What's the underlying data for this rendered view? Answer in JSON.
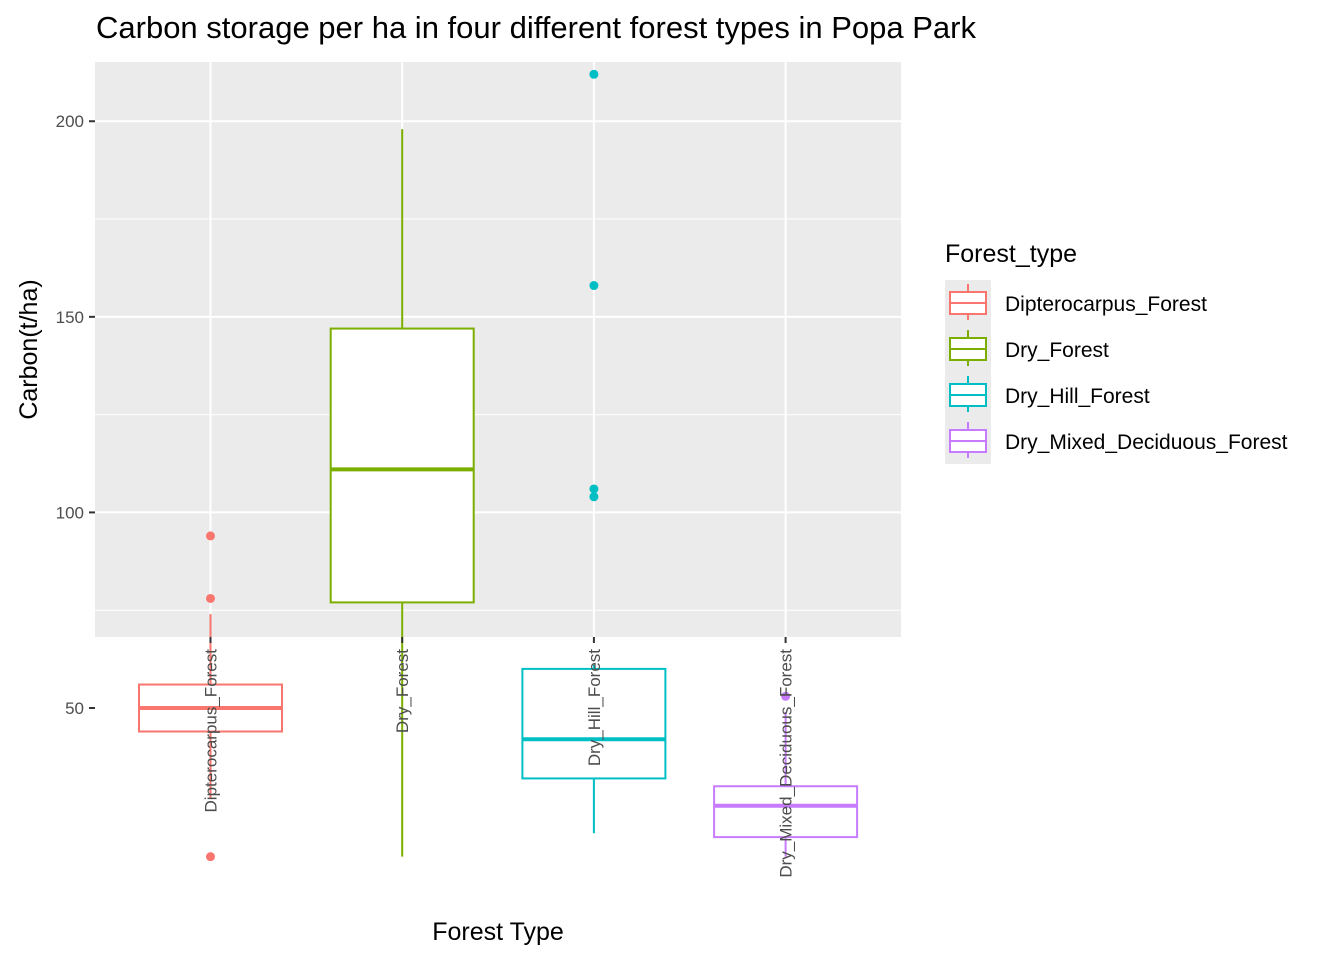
{
  "chart_data": {
    "type": "box",
    "title": "Carbon storage per ha in four different forest types in Popa Park",
    "xlabel": "Forest Type",
    "ylabel": "Carbon(t/ha)",
    "ylim": [
      2,
      221
    ],
    "yticks": [
      50,
      100,
      150,
      200
    ],
    "grid": true,
    "legend_placement": "right",
    "legend_title": "Forest_type",
    "categories": [
      "Dipterocarpus_Forest",
      "Dry_Forest",
      "Dry_Hill_Forest",
      "Dry_Mixed_Deciduous_Forest"
    ],
    "series": [
      {
        "name": "Dipterocarpus_Forest",
        "color": "#F8766D",
        "whisker_low": 27,
        "q1": 44,
        "median": 50,
        "q3": 56,
        "whisker_high": 74,
        "outliers": [
          94,
          78,
          12
        ]
      },
      {
        "name": "Dry_Forest",
        "color": "#7CAE00",
        "whisker_low": 12,
        "q1": 77,
        "median": 111,
        "q3": 147,
        "whisker_high": 198,
        "outliers": []
      },
      {
        "name": "Dry_Hill_Forest",
        "color": "#00BFC4",
        "whisker_low": 18,
        "q1": 32,
        "median": 42,
        "q3": 60,
        "whisker_high": 61,
        "outliers": [
          212,
          158,
          106,
          104
        ]
      },
      {
        "name": "Dry_Mixed_Deciduous_Forest",
        "color": "#C77CFF",
        "whisker_low": 12,
        "q1": 17,
        "median": 25,
        "q3": 30,
        "whisker_high": 49,
        "outliers": [
          53
        ]
      }
    ]
  }
}
